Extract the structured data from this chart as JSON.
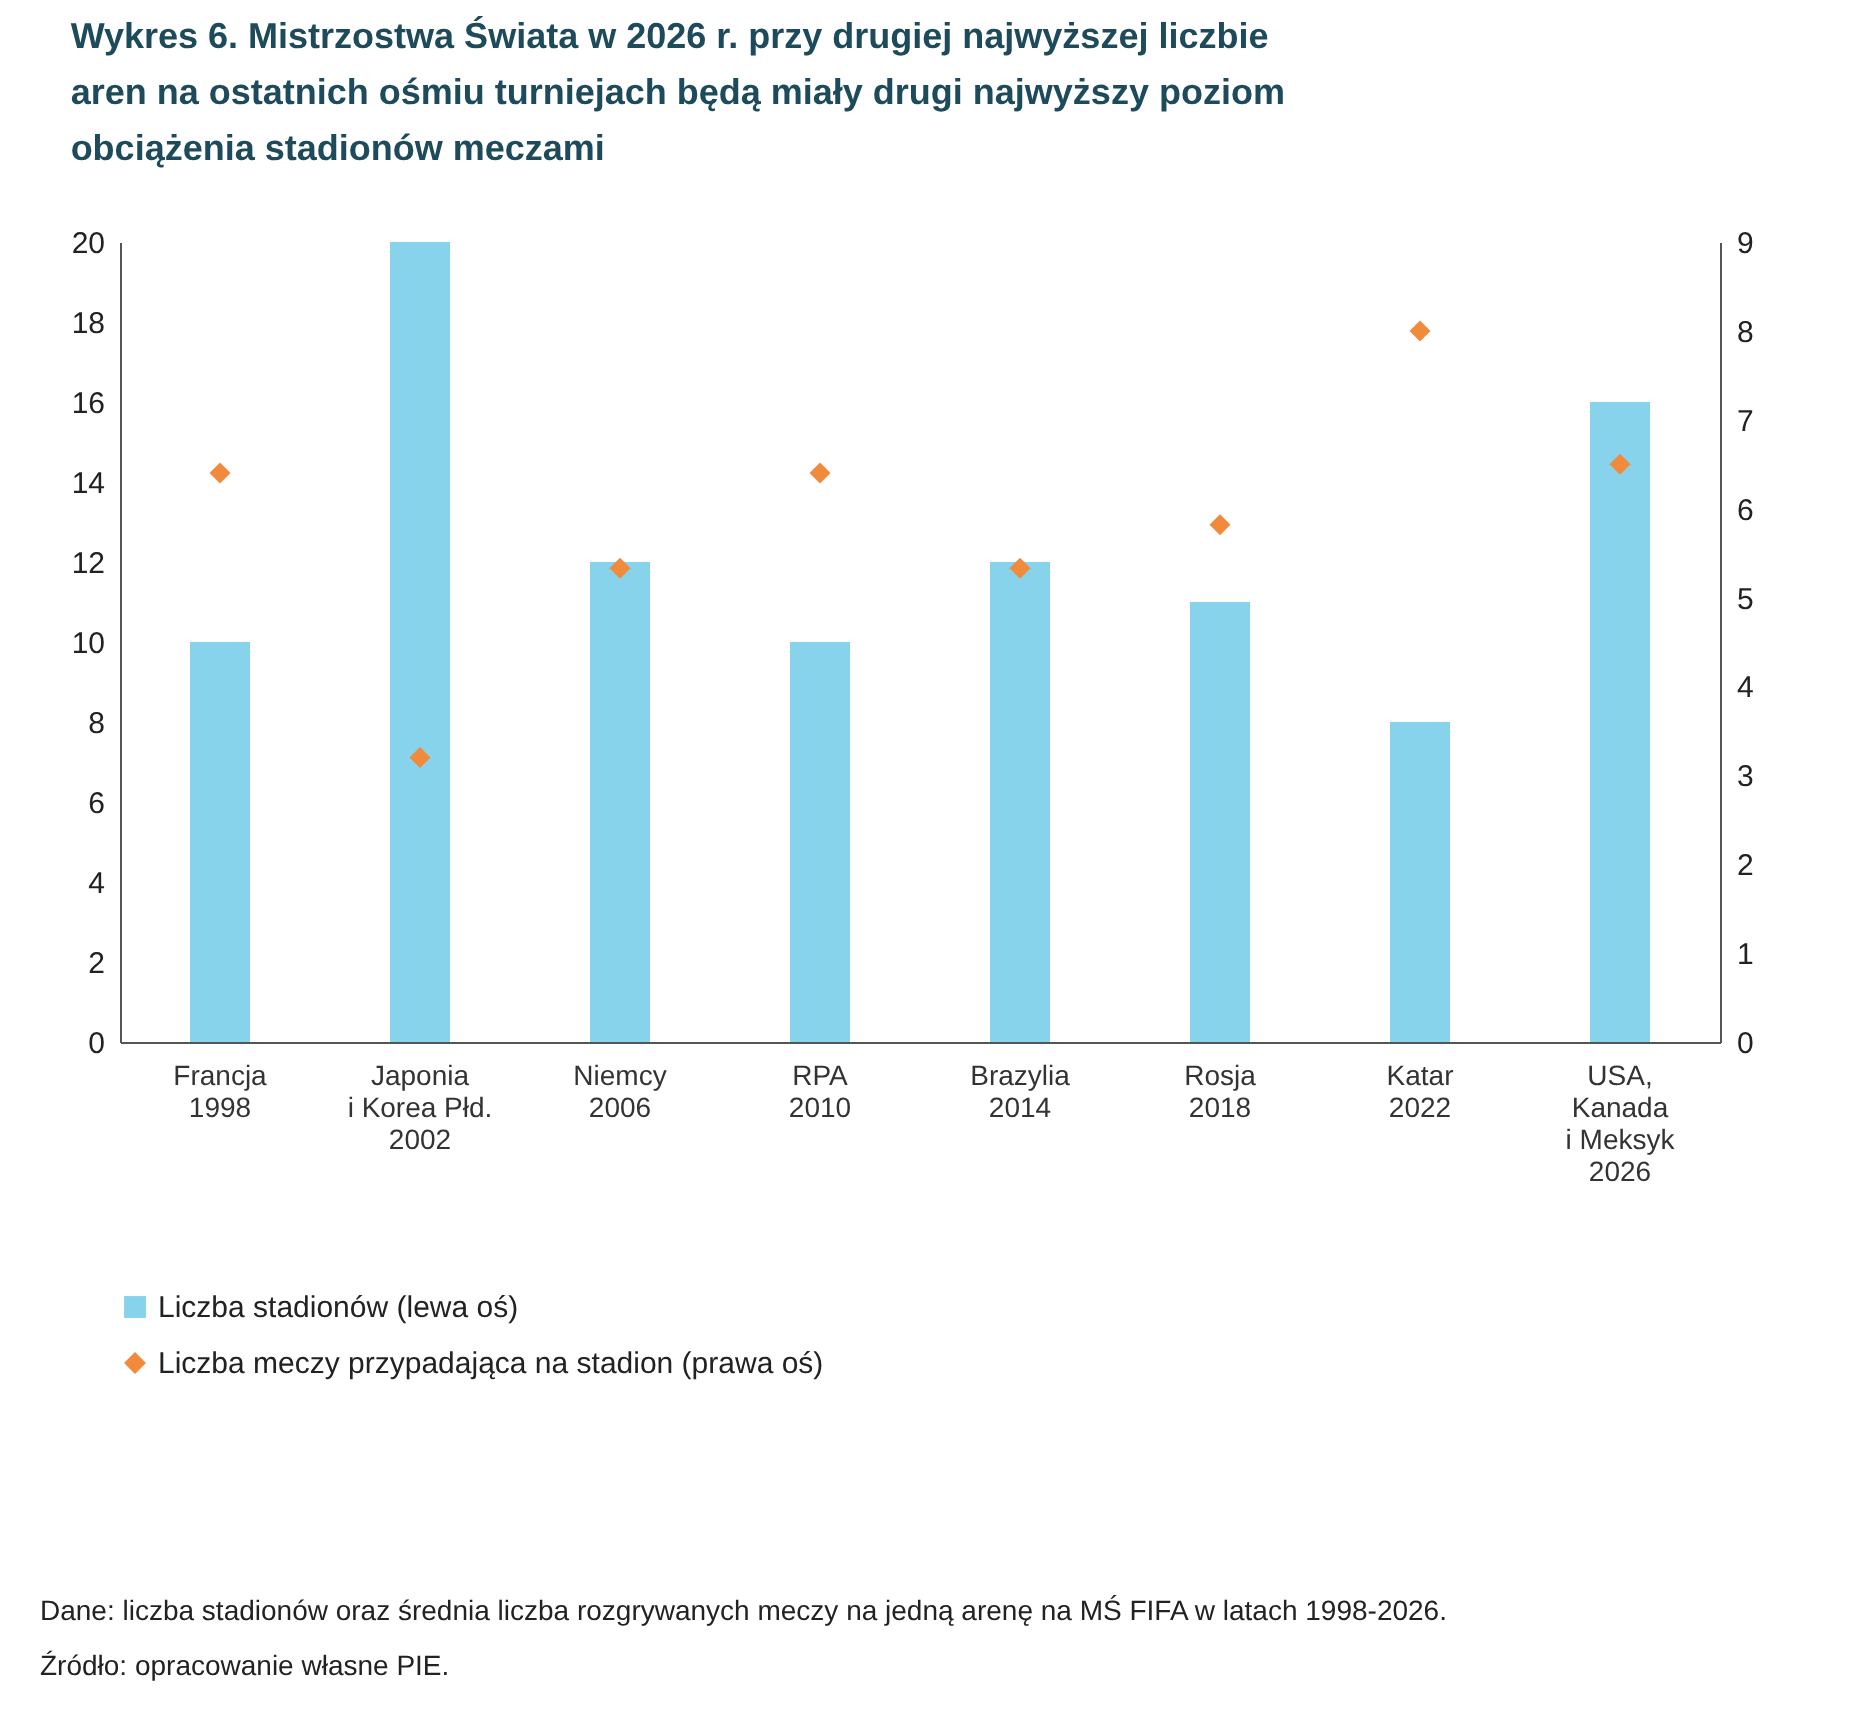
{
  "chart_data": {
    "type": "bar",
    "title": "Wykres 6.   Mistrzostwa Świata w 2026 r. przy drugiej najwyższej liczbie aren na ostatnich ośmiu turniejach będą miały drugi najwyższy poziom obciążenia stadionów meczami",
    "categories": [
      "Francja\n1998",
      "Japonia\ni Korea Płd.\n2002",
      "Niemcy\n2006",
      "RPA\n2010",
      "Brazylia\n2014",
      "Rosja\n2018",
      "Katar\n2022",
      "USA,\nKanada\ni Meksyk\n2026"
    ],
    "series": [
      {
        "name": "Liczba stadionów (lewa oś)",
        "color": "#87d3ec",
        "values": [
          10,
          20,
          12,
          10,
          12,
          11,
          8,
          16
        ]
      },
      {
        "name": "Liczba meczy przypadająca na stadion (prawa oś)",
        "color": "#f28a3c",
        "type": "scatter",
        "axis": "y2",
        "marker": "diamond",
        "values": [
          6.4,
          3.2,
          5.33,
          6.4,
          5.33,
          5.82,
          8,
          6.5
        ]
      }
    ],
    "ylim": [
      0,
      20
    ],
    "yticks": [
      0,
      2,
      4,
      6,
      8,
      10,
      12,
      14,
      16,
      18,
      20
    ],
    "y2lim": [
      0,
      9
    ],
    "y2ticks": [
      0,
      1,
      2,
      3,
      4,
      5,
      6,
      7,
      8,
      9
    ],
    "legend": "bottom left",
    "annotations": [
      "Dane: liczba stadionów oraz średnia liczba rozgrywanych meczy na jedną arenę na MŚ FIFA w latach 1998-2026.",
      "Źródło: opracowanie własne PIE."
    ]
  }
}
